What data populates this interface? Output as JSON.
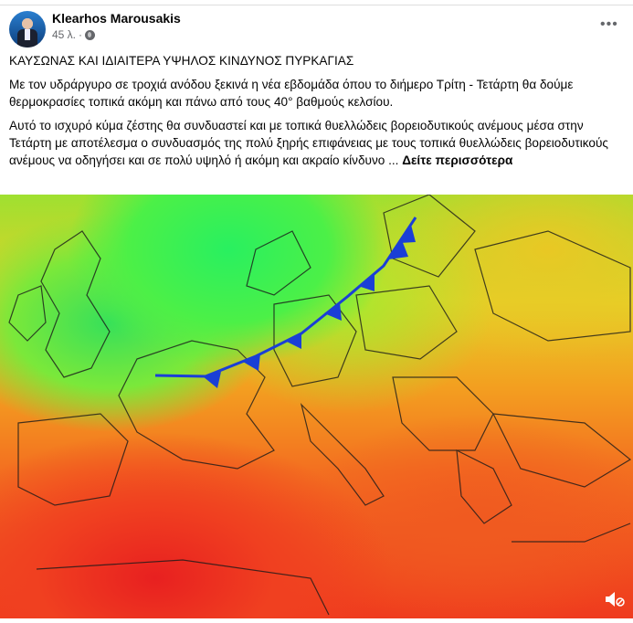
{
  "post": {
    "author": "Klearhos Marousakis",
    "time": "45 λ.",
    "audience_icon": "globe-icon",
    "menu_icon": "more-icon",
    "more_label": "•••",
    "headline": "ΚΑΥΣΩΝΑΣ ΚΑΙ ΙΔΙΑΙΤΕΡΑ ΥΨΗΛΟΣ ΚΙΝΔΥΝΟΣ ΠΥΡΚΑΓΙΑΣ",
    "paragraph1": "Με τον υδράργυρο σε τροχιά ανόδου ξεκινά η νέα εβδομάδα όπου το διήμερο Τρίτη - Τετάρτη θα δούμε θερμοκρασίες τοπικά ακόμη και πάνω από τους 40° βαθμούς κελσίου.",
    "paragraph2": "Αυτό το ισχυρό κύμα ζέστης θα συνδυαστεί και με τοπικά θυελλώδεις βορειοδυτικούς ανέμους μέσα στην Τετάρτη με αποτέλεσμα ο συνδυασμός της πολύ ξηρής επιφάνειας με τους τοπικά θυελλώδεις βορειοδυτικούς ανέμους να οδηγήσει και σε πολύ υψηλό ή ακόμη και ακραίο κίνδυνο ...",
    "see_more": "Δείτε περισσότερα"
  },
  "media": {
    "type": "video",
    "description_icon": "cold-front-line",
    "front_color": "#1a3fd6",
    "mute_icon": "speaker-muted-icon"
  }
}
